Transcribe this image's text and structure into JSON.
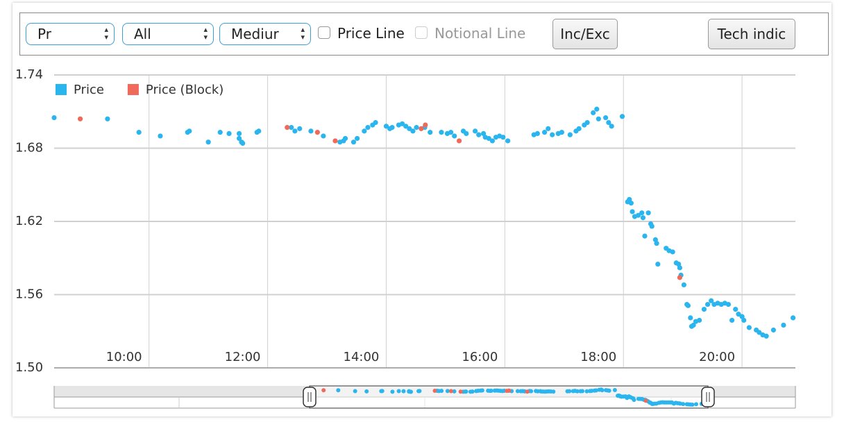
{
  "controls": {
    "selects": [
      "Pr",
      "All",
      "Mediur"
    ],
    "checkboxes": [
      "Price Line",
      "Notional Line"
    ],
    "buttons": [
      "Inc/Exc",
      "Tech indic"
    ]
  },
  "chart_data": {
    "type": "scatter",
    "xlim": [
      8.4,
      20.9
    ],
    "xticks": [
      {
        "value": 10,
        "label": "10:00"
      },
      {
        "value": 12,
        "label": "12:00"
      },
      {
        "value": 14,
        "label": "14:00"
      },
      {
        "value": 16,
        "label": "16:00"
      },
      {
        "value": 18,
        "label": "18:00"
      },
      {
        "value": 20,
        "label": "20:00"
      }
    ],
    "ylim": [
      1.5,
      1.74
    ],
    "yticks": [
      {
        "value": 1.5,
        "label": "1.50"
      },
      1.56,
      1.62,
      1.68,
      1.74
    ],
    "grid": true,
    "legend": "top-left",
    "series": [
      {
        "name": "Price",
        "color": "#2bb5ef",
        "x": [
          8.4,
          9.3,
          9.83,
          10.19,
          10.65,
          10.68,
          11.0,
          11.2,
          11.35,
          11.52,
          11.52,
          11.56,
          11.58,
          11.82,
          11.85,
          12.4,
          12.46,
          12.54,
          12.73,
          12.94,
          13.22,
          13.28,
          13.31,
          13.45,
          13.51,
          13.63,
          13.69,
          13.77,
          13.82,
          14.0,
          14.06,
          14.1,
          14.21,
          14.27,
          14.33,
          14.39,
          14.45,
          14.51,
          14.65,
          14.74,
          14.93,
          15.03,
          15.09,
          15.15,
          15.3,
          15.35,
          15.5,
          15.56,
          15.64,
          15.67,
          15.73,
          15.79,
          15.85,
          15.91,
          15.97,
          16.05,
          16.49,
          16.55,
          16.67,
          16.73,
          16.8,
          16.9,
          16.96,
          17.1,
          17.2,
          17.25,
          17.34,
          17.39,
          17.49,
          17.55,
          17.58,
          17.7,
          17.75,
          17.8,
          17.98,
          18.07,
          18.1,
          18.13,
          18.15,
          18.19,
          18.25,
          18.31,
          18.33,
          18.36,
          18.42,
          18.46,
          18.48,
          18.54,
          18.56,
          18.58,
          18.72,
          18.77,
          18.83,
          18.89,
          18.93,
          18.95,
          18.97,
          19.02,
          19.07,
          19.09,
          19.13,
          19.15,
          19.18,
          19.22,
          19.28,
          19.36,
          19.42,
          19.48,
          19.53,
          19.59,
          19.65,
          19.71,
          19.77,
          19.83,
          19.89,
          19.94,
          20.0,
          20.03,
          20.12,
          20.24,
          20.29,
          20.35,
          20.41,
          20.53,
          20.7,
          20.86
        ],
        "values": [
          1.705,
          1.704,
          1.693,
          1.69,
          1.693,
          1.694,
          1.685,
          1.693,
          1.692,
          1.692,
          1.688,
          1.685,
          1.684,
          1.693,
          1.694,
          1.697,
          1.694,
          1.696,
          1.694,
          1.69,
          1.685,
          1.686,
          1.688,
          1.685,
          1.688,
          1.694,
          1.697,
          1.699,
          1.701,
          1.698,
          1.696,
          1.697,
          1.699,
          1.7,
          1.698,
          1.696,
          1.694,
          1.697,
          1.697,
          1.693,
          1.693,
          1.692,
          1.693,
          1.69,
          1.694,
          1.692,
          1.694,
          1.691,
          1.692,
          1.689,
          1.688,
          1.686,
          1.689,
          1.69,
          1.689,
          1.686,
          1.691,
          1.692,
          1.693,
          1.696,
          1.691,
          1.692,
          1.693,
          1.691,
          1.694,
          1.696,
          1.699,
          1.701,
          1.709,
          1.712,
          1.704,
          1.705,
          1.701,
          1.698,
          1.706,
          1.636,
          1.638,
          1.635,
          1.628,
          1.624,
          1.625,
          1.627,
          1.623,
          1.608,
          1.627,
          1.618,
          1.616,
          1.605,
          1.602,
          1.585,
          1.598,
          1.596,
          1.595,
          1.586,
          1.585,
          1.582,
          1.576,
          1.568,
          1.552,
          1.551,
          1.541,
          1.534,
          1.535,
          1.538,
          1.539,
          1.548,
          1.552,
          1.555,
          1.552,
          1.553,
          1.552,
          1.553,
          1.552,
          1.539,
          1.548,
          1.544,
          1.542,
          1.539,
          1.533,
          1.531,
          1.529,
          1.527,
          1.526,
          1.531,
          1.535,
          1.541
        ]
      },
      {
        "name": "Price (Block)",
        "color": "#ef6a5a",
        "x": [
          8.84,
          12.33,
          12.84,
          13.14,
          14.59,
          14.66,
          15.23,
          18.95
        ],
        "values": [
          1.704,
          1.697,
          1.693,
          1.686,
          1.696,
          1.699,
          1.686,
          1.574
        ]
      }
    ]
  }
}
